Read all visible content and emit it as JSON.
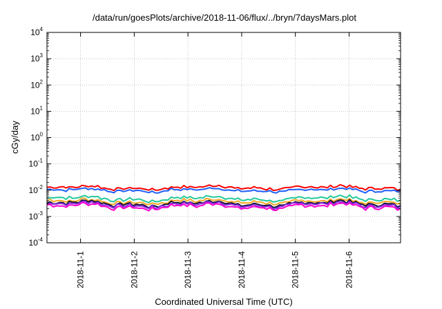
{
  "chart_data": {
    "type": "line",
    "title": "/data/run/goesPlots/archive/2018-11-06/flux/../bryn/7daysMars.plot",
    "xlabel": "Coordinated Universal Time (UTC)",
    "ylabel": "cGy/day",
    "yscale": "log",
    "ylim": [
      0.0001,
      10000
    ],
    "y_ticks": [
      {
        "base": "10",
        "exp": "-4",
        "value": 0.0001
      },
      {
        "base": "10",
        "exp": "-3",
        "value": 0.001
      },
      {
        "base": "10",
        "exp": "-2",
        "value": 0.01
      },
      {
        "base": "10",
        "exp": "-1",
        "value": 0.1
      },
      {
        "base": "10",
        "exp": "0",
        "value": 1
      },
      {
        "base": "10",
        "exp": "1",
        "value": 10
      },
      {
        "base": "10",
        "exp": "2",
        "value": 100
      },
      {
        "base": "10",
        "exp": "3",
        "value": 1000
      },
      {
        "base": "10",
        "exp": "4",
        "value": 10000
      }
    ],
    "xlim": [
      "2018-10-31T09:00",
      "2018-11-06T23:00"
    ],
    "x_ticks": [
      "2018-11-1",
      "2018-11-2",
      "2018-11-3",
      "2018-11-4",
      "2018-11-5",
      "2018-11-6"
    ],
    "grid": true,
    "legend": "none",
    "series": [
      {
        "color": "#ff0000",
        "base": 0.0125,
        "amp": 0.28
      },
      {
        "color": "#1f5fff",
        "base": 0.01,
        "amp": 0.28
      },
      {
        "color": "#22c89a",
        "base": 0.0048,
        "amp": 0.34
      },
      {
        "color": "#f5a623",
        "base": 0.0037,
        "amp": 0.36
      },
      {
        "color": "#111133",
        "base": 0.0031,
        "amp": 0.38
      },
      {
        "color": "#8a2be2",
        "base": 0.0028,
        "amp": 0.4
      },
      {
        "color": "#ff00cc",
        "base": 0.0024,
        "amp": 0.42
      }
    ]
  }
}
